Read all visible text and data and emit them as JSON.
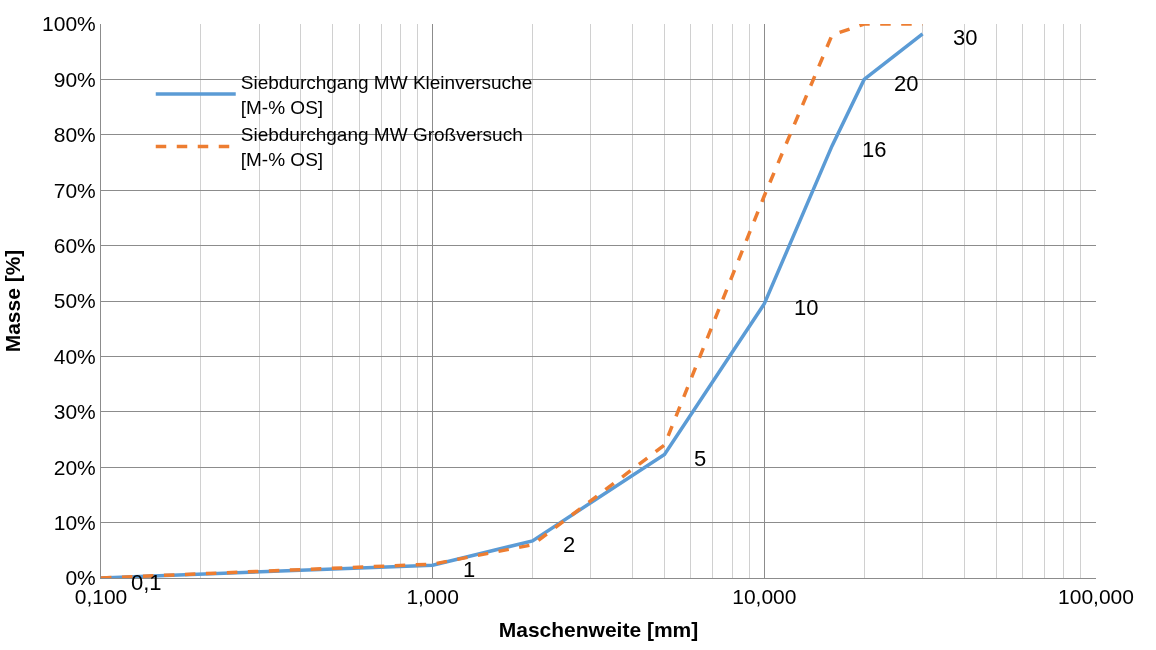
{
  "chart_data": {
    "type": "line",
    "xlabel": "Maschenweite [mm]",
    "ylabel": "Masse [%]",
    "log": "x",
    "grid": true,
    "legend": "top left",
    "marker": "none",
    "xlim": [
      0.1,
      100
    ],
    "xticks": [
      {
        "value": 0.1,
        "label": "0,100"
      },
      {
        "value": 1,
        "label": "1,000"
      },
      {
        "value": 10,
        "label": "10,000"
      },
      {
        "value": 100,
        "label": "100,000"
      }
    ],
    "ylim": [
      0,
      100
    ],
    "yticks": [
      {
        "value": 0,
        "label": "0%"
      },
      {
        "value": 10,
        "label": "10%"
      },
      {
        "value": 20,
        "label": "20%"
      },
      {
        "value": 30,
        "label": "30%"
      },
      {
        "value": 40,
        "label": "40%"
      },
      {
        "value": 50,
        "label": "50%"
      },
      {
        "value": 60,
        "label": "60%"
      },
      {
        "value": 70,
        "label": "70%"
      },
      {
        "value": 80,
        "label": "80%"
      },
      {
        "value": 90,
        "label": "90%"
      },
      {
        "value": 100,
        "label": "100%"
      }
    ],
    "x": [
      0.1,
      1,
      2,
      5,
      10,
      16,
      20,
      30
    ],
    "series": [
      {
        "name": "Siebdurchgang MW Kleinversuche\n[M-% OS]",
        "color": "#5b9bd5",
        "line_style": "solid",
        "values": [
          0,
          2.3,
          6.7,
          22.3,
          49.5,
          78,
          90,
          98.2
        ]
      },
      {
        "name": "Siebdurchgang MW Großversuch\n[M-% OS]",
        "color": "#ed7d31",
        "line_style": "dashed",
        "values": [
          0,
          2.5,
          6,
          24,
          69,
          98,
          100,
          100
        ]
      }
    ],
    "annotations": [
      {
        "text": "0,1",
        "x": 0.1,
        "y": 0
      },
      {
        "text": "1",
        "x": 1,
        "y": 2.3
      },
      {
        "text": "2",
        "x": 2,
        "y": 6.7
      },
      {
        "text": "5",
        "x": 5,
        "y": 22.3
      },
      {
        "text": "10",
        "x": 10,
        "y": 49.5
      },
      {
        "text": "16",
        "x": 16,
        "y": 78
      },
      {
        "text": "20",
        "x": 20,
        "y": 90
      },
      {
        "text": "30",
        "x": 30,
        "y": 98.2
      }
    ]
  }
}
